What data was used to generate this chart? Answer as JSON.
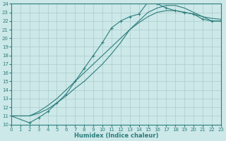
{
  "xlabel": "Humidex (Indice chaleur)",
  "background_color": "#cce8e8",
  "grid_color": "#aacccc",
  "line_color": "#2d7d7d",
  "xlim": [
    0,
    23
  ],
  "ylim": [
    10,
    24
  ],
  "xticks": [
    0,
    1,
    2,
    3,
    4,
    5,
    6,
    7,
    8,
    9,
    10,
    11,
    12,
    13,
    14,
    15,
    16,
    17,
    18,
    19,
    20,
    21,
    22,
    23
  ],
  "yticks": [
    10,
    11,
    12,
    13,
    14,
    15,
    16,
    17,
    18,
    19,
    20,
    21,
    22,
    23,
    24
  ],
  "line1_x": [
    0,
    1,
    2,
    3,
    4,
    5,
    6,
    7,
    8,
    9,
    10,
    11,
    12,
    13,
    14,
    15,
    16,
    17,
    18,
    19,
    20,
    21,
    22,
    23
  ],
  "line1_y": [
    11.0,
    11.0,
    11.0,
    11.5,
    12.2,
    13.0,
    14.0,
    15.0,
    16.0,
    17.0,
    18.0,
    19.0,
    20.0,
    21.0,
    21.8,
    22.5,
    23.0,
    23.2,
    23.2,
    23.0,
    22.8,
    22.5,
    22.3,
    22.2
  ],
  "line2_x": [
    0,
    1,
    2,
    3,
    4,
    5,
    6,
    7,
    8,
    9,
    10,
    11,
    12,
    13,
    14,
    15,
    16,
    17,
    18,
    19,
    20,
    21,
    22,
    23
  ],
  "line2_y": [
    11.0,
    11.0,
    11.0,
    11.3,
    11.8,
    12.5,
    13.3,
    14.2,
    15.0,
    16.0,
    17.0,
    18.2,
    19.5,
    21.0,
    22.0,
    23.0,
    23.5,
    23.8,
    23.8,
    23.5,
    23.0,
    22.5,
    22.0,
    22.0
  ],
  "line3_x": [
    0,
    2,
    3,
    4,
    5,
    6,
    7,
    8,
    9,
    10,
    11,
    12,
    13,
    14,
    15,
    16,
    17,
    18,
    19,
    20,
    21,
    22,
    23
  ],
  "line3_y": [
    11.0,
    10.2,
    10.8,
    11.5,
    12.5,
    13.5,
    15.0,
    16.5,
    18.0,
    19.5,
    21.2,
    22.0,
    22.5,
    22.8,
    24.2,
    24.0,
    23.5,
    23.2,
    23.0,
    22.8,
    22.2,
    22.0,
    22.0
  ],
  "line3_has_markers": true,
  "marker": "+",
  "markersize": 3,
  "linewidth": 0.8,
  "tick_labelsize": 5,
  "xlabel_fontsize": 6
}
